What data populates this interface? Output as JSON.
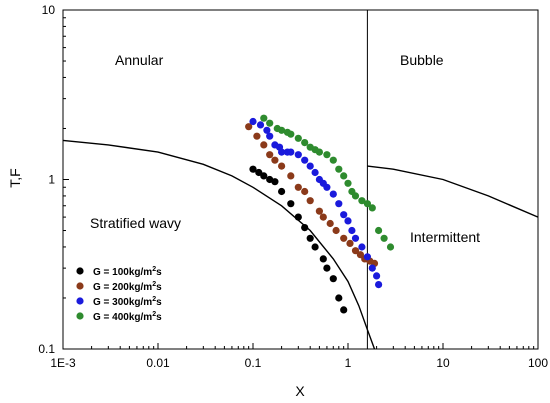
{
  "chart_data": {
    "type": "scatter",
    "xscale": "log",
    "yscale": "log",
    "xlim": [
      0.001,
      100
    ],
    "ylim": [
      0.1,
      10
    ],
    "xlabel": "X",
    "ylabel": "T,F",
    "x_ticks": [
      "1E-3",
      "0.01",
      "0.1",
      "1",
      "10",
      "100"
    ],
    "y_ticks": [
      "0.1",
      "1",
      "10"
    ],
    "grid": false,
    "legend_position": "bottom-left",
    "regions": {
      "annular": "Annular",
      "bubble": "Bubble",
      "stratified_wavy": "Stratified wavy",
      "intermittent": "Intermittent"
    },
    "boundary_lines": [
      {
        "kind": "curve",
        "points": [
          [
            0.001,
            1.7
          ],
          [
            0.003,
            1.6
          ],
          [
            0.01,
            1.45
          ],
          [
            0.03,
            1.23
          ],
          [
            0.06,
            1.05
          ],
          [
            0.1,
            0.9
          ],
          [
            0.2,
            0.7
          ],
          [
            0.4,
            0.5
          ],
          [
            0.7,
            0.34
          ],
          [
            1.0,
            0.25
          ],
          [
            1.3,
            0.18
          ],
          [
            1.6,
            0.13
          ],
          [
            1.9,
            0.1
          ]
        ]
      },
      {
        "kind": "vertical",
        "x": 1.6
      },
      {
        "kind": "curve",
        "points": [
          [
            1.6,
            1.2
          ],
          [
            3,
            1.15
          ],
          [
            10,
            1.0
          ],
          [
            30,
            0.8
          ],
          [
            100,
            0.6
          ]
        ]
      }
    ],
    "series": [
      {
        "name": "G = 100kg/m2s",
        "legend_base": "G = 100kg/m",
        "legend_sup": "2",
        "legend_tail": "s",
        "color": "#000000",
        "points": [
          [
            0.1,
            1.15
          ],
          [
            0.115,
            1.1
          ],
          [
            0.13,
            1.05
          ],
          [
            0.15,
            1.0
          ],
          [
            0.17,
            0.97
          ],
          [
            0.2,
            0.85
          ],
          [
            0.25,
            0.72
          ],
          [
            0.3,
            0.6
          ],
          [
            0.35,
            0.52
          ],
          [
            0.4,
            0.45
          ],
          [
            0.45,
            0.4
          ],
          [
            0.55,
            0.34
          ],
          [
            0.6,
            0.3
          ],
          [
            0.7,
            0.26
          ],
          [
            0.8,
            0.2
          ],
          [
            0.9,
            0.17
          ]
        ]
      },
      {
        "name": "G = 200kg/m2s",
        "legend_base": "G = 200kg/m",
        "legend_sup": "2",
        "legend_tail": "s",
        "color": "#8b3a1a",
        "points": [
          [
            0.09,
            2.05
          ],
          [
            0.11,
            1.8
          ],
          [
            0.13,
            1.6
          ],
          [
            0.15,
            1.4
          ],
          [
            0.17,
            1.3
          ],
          [
            0.2,
            1.2
          ],
          [
            0.25,
            1.05
          ],
          [
            0.3,
            0.9
          ],
          [
            0.35,
            0.85
          ],
          [
            0.4,
            0.75
          ],
          [
            0.5,
            0.65
          ],
          [
            0.55,
            0.6
          ],
          [
            0.65,
            0.55
          ],
          [
            0.75,
            0.5
          ],
          [
            0.9,
            0.45
          ],
          [
            1.05,
            0.42
          ],
          [
            1.2,
            0.38
          ],
          [
            1.35,
            0.36
          ],
          [
            1.5,
            0.34
          ],
          [
            1.7,
            0.33
          ],
          [
            1.9,
            0.32
          ]
        ]
      },
      {
        "name": "G = 300kg/m2s",
        "legend_base": "G = 300kg/m",
        "legend_sup": "2",
        "legend_tail": "s",
        "color": "#1a1adc",
        "points": [
          [
            0.1,
            2.2
          ],
          [
            0.12,
            2.1
          ],
          [
            0.14,
            1.95
          ],
          [
            0.15,
            1.8
          ],
          [
            0.17,
            1.6
          ],
          [
            0.19,
            1.55
          ],
          [
            0.2,
            1.45
          ],
          [
            0.23,
            1.45
          ],
          [
            0.25,
            1.45
          ],
          [
            0.3,
            1.4
          ],
          [
            0.35,
            1.3
          ],
          [
            0.4,
            1.2
          ],
          [
            0.45,
            1.1
          ],
          [
            0.5,
            1.0
          ],
          [
            0.55,
            0.95
          ],
          [
            0.6,
            0.9
          ],
          [
            0.7,
            0.82
          ],
          [
            0.8,
            0.72
          ],
          [
            0.9,
            0.62
          ],
          [
            1.0,
            0.57
          ],
          [
            1.1,
            0.5
          ],
          [
            1.2,
            0.45
          ],
          [
            1.4,
            0.4
          ],
          [
            1.6,
            0.35
          ],
          [
            1.8,
            0.3
          ],
          [
            2.0,
            0.27
          ],
          [
            2.1,
            0.24
          ]
        ]
      },
      {
        "name": "G = 400kg/m2s",
        "legend_base": "G = 400kg/m",
        "legend_sup": "2",
        "legend_tail": "s",
        "color": "#2e8b2e",
        "points": [
          [
            0.13,
            2.3
          ],
          [
            0.15,
            2.15
          ],
          [
            0.18,
            2.0
          ],
          [
            0.2,
            1.95
          ],
          [
            0.23,
            1.9
          ],
          [
            0.25,
            1.85
          ],
          [
            0.3,
            1.75
          ],
          [
            0.35,
            1.65
          ],
          [
            0.4,
            1.55
          ],
          [
            0.45,
            1.5
          ],
          [
            0.5,
            1.45
          ],
          [
            0.6,
            1.4
          ],
          [
            0.7,
            1.3
          ],
          [
            0.8,
            1.15
          ],
          [
            0.9,
            1.05
          ],
          [
            1.0,
            0.95
          ],
          [
            1.1,
            0.85
          ],
          [
            1.2,
            0.8
          ],
          [
            1.4,
            0.75
          ],
          [
            1.6,
            0.72
          ],
          [
            1.8,
            0.68
          ],
          [
            2.1,
            0.5
          ],
          [
            2.4,
            0.45
          ],
          [
            2.8,
            0.4
          ]
        ]
      }
    ]
  }
}
